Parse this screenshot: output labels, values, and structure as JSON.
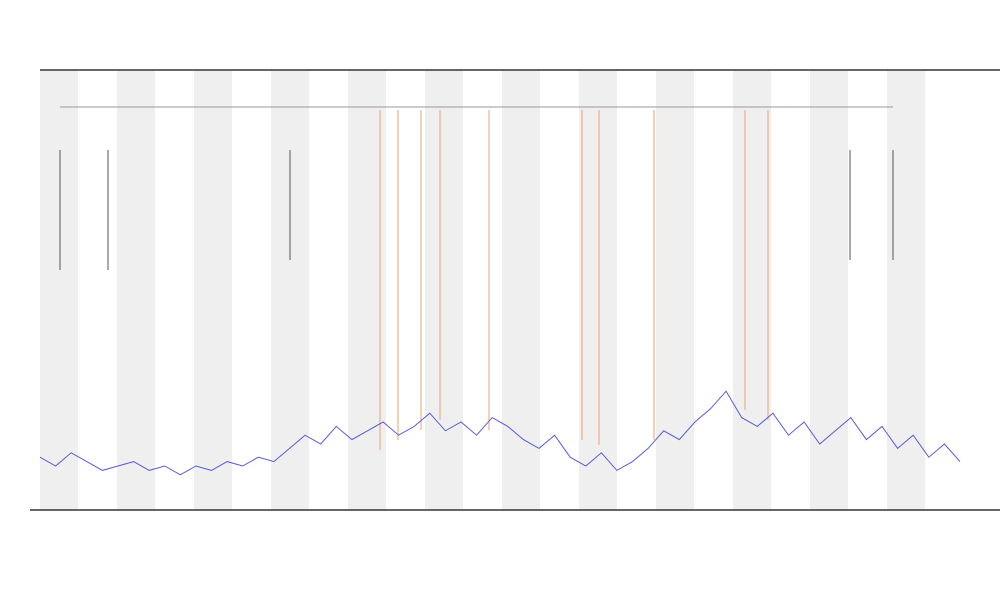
{
  "chart_data": {
    "type": "line",
    "color": "#5a5ad8",
    "ylim": [
      0,
      100
    ],
    "values": [
      12,
      10,
      13,
      11,
      9,
      10,
      11,
      9,
      10,
      8,
      10,
      9,
      11,
      10,
      12,
      11,
      14,
      17,
      15,
      19,
      16,
      18,
      20,
      17,
      19,
      22,
      18,
      20,
      17,
      21,
      19,
      16,
      14,
      17,
      12,
      10,
      13,
      9,
      11,
      14,
      18,
      16,
      20,
      23,
      27,
      21,
      19,
      22,
      17,
      20,
      15,
      18,
      21,
      16,
      19,
      14,
      17,
      12,
      15,
      11
    ]
  }
}
